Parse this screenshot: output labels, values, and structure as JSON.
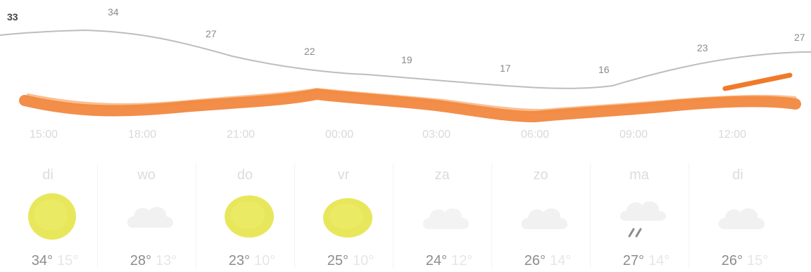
{
  "hourly": {
    "temps": [
      "33",
      "34",
      "27",
      "22",
      "19",
      "17",
      "16",
      "23",
      "27"
    ],
    "times": [
      "15:00",
      "18:00",
      "21:00",
      "00:00",
      "03:00",
      "06:00",
      "09:00",
      "12:00"
    ]
  },
  "days": [
    {
      "name": "di",
      "icon": "sun-icon",
      "max": "34°",
      "min": "15°"
    },
    {
      "name": "wo",
      "icon": "cloud-icon",
      "max": "28°",
      "min": "13°"
    },
    {
      "name": "do",
      "icon": "sun-icon",
      "max": "23°",
      "min": "10°"
    },
    {
      "name": "vr",
      "icon": "sun-icon",
      "max": "25°",
      "min": "10°"
    },
    {
      "name": "za",
      "icon": "cloud-icon",
      "max": "24°",
      "min": "12°"
    },
    {
      "name": "zo",
      "icon": "cloud-icon",
      "max": "26°",
      "min": "14°"
    },
    {
      "name": "ma",
      "icon": "cloud-rain-icon",
      "max": "27°",
      "min": "14°"
    },
    {
      "name": "di",
      "icon": "cloud-icon",
      "max": "26°",
      "min": "15°"
    }
  ],
  "colors": {
    "accent_orange": "#f07a2a",
    "sun_yellow": "#e6e44a",
    "temp_line": "#bdbdbd"
  }
}
